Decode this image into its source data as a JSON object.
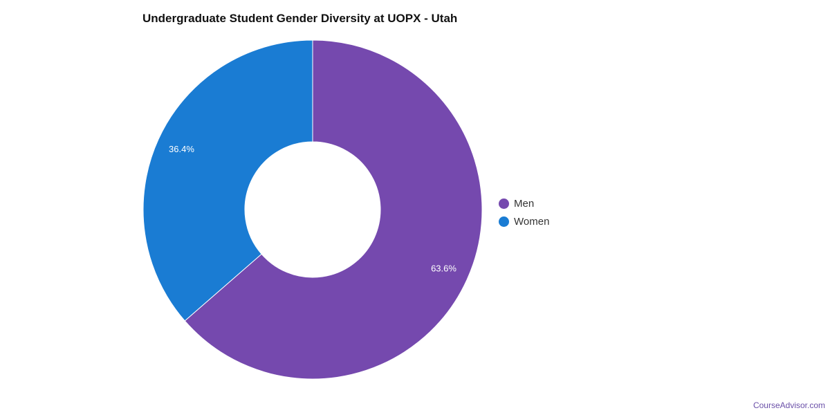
{
  "title": "Undergraduate Student Gender Diversity at UOPX - Utah",
  "watermark": "CourseAdvisor.com",
  "colors": {
    "men": "#7549ae",
    "women": "#1a7cd3"
  },
  "chart_data": {
    "type": "pie",
    "donut": true,
    "title": "Undergraduate Student Gender Diversity at UOPX - Utah",
    "slices": [
      {
        "name": "Men",
        "value": 63.6,
        "label": "63.6%",
        "color": "#7549ae"
      },
      {
        "name": "Women",
        "value": 36.4,
        "label": "36.4%",
        "color": "#1a7cd3"
      }
    ],
    "legend": {
      "placement": "right",
      "items": [
        "Men",
        "Women"
      ]
    }
  }
}
